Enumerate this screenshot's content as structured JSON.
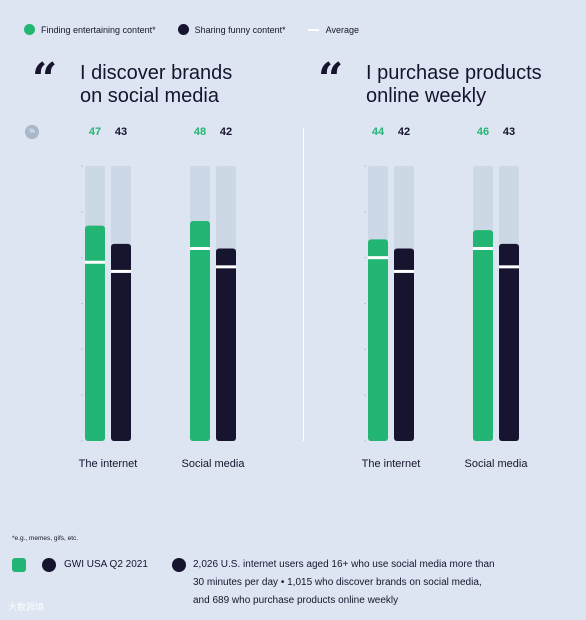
{
  "legend": {
    "items": [
      {
        "label": "Finding entertaining content*",
        "color": "#23b573"
      },
      {
        "label": "Sharing funny content*",
        "color": "#16142e"
      },
      {
        "label": "Average",
        "color": "#ffffff"
      }
    ]
  },
  "panels": [
    {
      "title_line1": "I discover brands",
      "title_line2": "on social media"
    },
    {
      "title_line1": "I purchase products",
      "title_line2": "online weekly"
    }
  ],
  "percent_badge": "%",
  "chart_data": [
    {
      "type": "bar",
      "title": "I discover brands on social media",
      "unit": "%",
      "categories": [
        "The internet",
        "Social media"
      ],
      "series": [
        {
          "name": "Finding entertaining content*",
          "color": "#23b573",
          "values": [
            47,
            48
          ]
        },
        {
          "name": "Sharing funny content*",
          "color": "#16142e",
          "values": [
            43,
            42
          ]
        }
      ],
      "average": [
        [
          39,
          37
        ],
        [
          42,
          38
        ]
      ],
      "ylim": [
        0,
        60
      ]
    },
    {
      "type": "bar",
      "title": "I purchase products online weekly",
      "unit": "%",
      "categories": [
        "The internet",
        "Social media"
      ],
      "series": [
        {
          "name": "Finding entertaining content*",
          "color": "#23b573",
          "values": [
            44,
            46
          ]
        },
        {
          "name": "Sharing funny content*",
          "color": "#16142e",
          "values": [
            42,
            43
          ]
        }
      ],
      "average": [
        [
          40,
          37
        ],
        [
          42,
          38
        ]
      ],
      "ylim": [
        0,
        60
      ]
    }
  ],
  "footnote": "*e.g., memes, gifs, etc.",
  "footer": {
    "source": "GWI USA Q2 2021",
    "sample_line1": "2,026 U.S. internet users aged 16+ who use social media more than",
    "sample_line2": "30 minutes per day • 1,015 who discover brands on social media,",
    "sample_line3": "and 689 who purchase products online weekly"
  },
  "watermark": "大数跨境"
}
